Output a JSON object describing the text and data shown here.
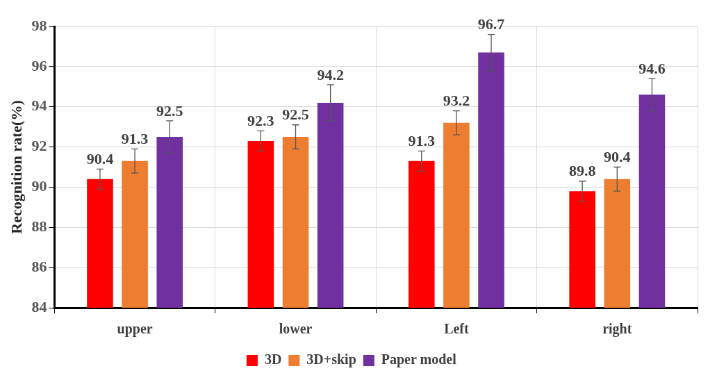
{
  "chart_data": {
    "type": "bar",
    "ylabel": "Recognition rate(%)",
    "categories": [
      "upper",
      "lower",
      "Left",
      "right"
    ],
    "series": [
      {
        "name": "3D",
        "color": "#ff0000",
        "values": [
          90.4,
          92.3,
          91.3,
          89.8
        ],
        "errors": [
          0.5,
          0.5,
          0.5,
          0.5
        ]
      },
      {
        "name": "3D+skip",
        "color": "#ed7d31",
        "values": [
          91.3,
          92.5,
          93.2,
          90.4
        ],
        "errors": [
          0.6,
          0.6,
          0.6,
          0.6
        ]
      },
      {
        "name": "Paper model",
        "color": "#7030a0",
        "values": [
          92.5,
          94.2,
          96.7,
          94.6
        ],
        "errors": [
          0.8,
          0.9,
          0.9,
          0.8
        ]
      }
    ],
    "ylim": [
      84,
      98
    ],
    "yticks": [
      84,
      86,
      88,
      90,
      92,
      94,
      96,
      98
    ],
    "grid": true,
    "legend": "bottom",
    "data_labels": true
  }
}
